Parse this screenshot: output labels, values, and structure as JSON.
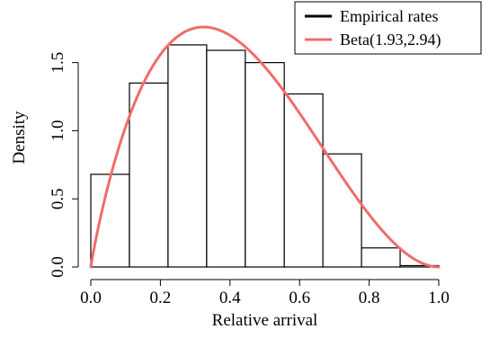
{
  "chart_data": {
    "type": "bar",
    "title": "",
    "xlabel": "Relative arrival",
    "ylabel": "Density",
    "xlim": [
      0.0,
      1.0
    ],
    "ylim": [
      0.0,
      1.9
    ],
    "xticks": [
      "0.0",
      "0.2",
      "0.4",
      "0.6",
      "0.8",
      "1.0"
    ],
    "yticks": [
      "0.0",
      "0.5",
      "1.0",
      "1.5"
    ],
    "histogram": {
      "name": "Empirical rates",
      "bins": [
        {
          "x0": 0.0,
          "x1": 0.111,
          "density": 0.68
        },
        {
          "x0": 0.111,
          "x1": 0.222,
          "density": 1.35
        },
        {
          "x0": 0.222,
          "x1": 0.333,
          "density": 1.63
        },
        {
          "x0": 0.333,
          "x1": 0.444,
          "density": 1.59
        },
        {
          "x0": 0.444,
          "x1": 0.556,
          "density": 1.5
        },
        {
          "x0": 0.556,
          "x1": 0.667,
          "density": 1.27
        },
        {
          "x0": 0.667,
          "x1": 0.778,
          "density": 0.83
        },
        {
          "x0": 0.778,
          "x1": 0.889,
          "density": 0.14
        },
        {
          "x0": 0.889,
          "x1": 1.0,
          "density": 0.01
        }
      ]
    },
    "curve": {
      "name": "Beta(1.93,2.94)",
      "distribution": "beta",
      "alpha": 1.93,
      "beta": 2.94,
      "color": "#f26b6b"
    },
    "legend": {
      "placement": "top-right",
      "entries": [
        {
          "label": "Empirical rates",
          "color": "#000000"
        },
        {
          "label": "Beta(1.93,2.94)",
          "color": "#f26b6b"
        }
      ]
    },
    "grid": false
  }
}
